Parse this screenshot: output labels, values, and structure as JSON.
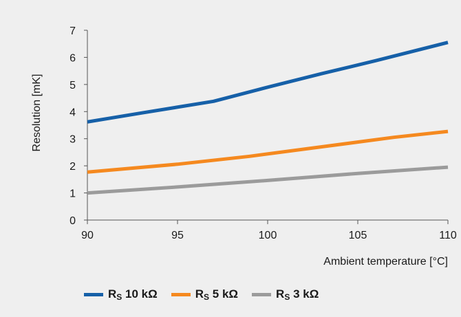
{
  "chart_data": {
    "type": "line",
    "title": "",
    "xlabel": "Ambient temperature [°C]",
    "ylabel": "Resolution [mK]",
    "xlim": [
      90,
      110
    ],
    "ylim": [
      0,
      7
    ],
    "xticks": [
      "90",
      "95",
      "100",
      "105",
      "110"
    ],
    "yticks": [
      "0",
      "1",
      "2",
      "3",
      "4",
      "5",
      "6",
      "7"
    ],
    "grid": false,
    "legend_position": "bottom",
    "series": [
      {
        "name": "Rs 10 kΩ",
        "label_main": "R",
        "label_sub": "S",
        "label_rest": " 10 kΩ",
        "color": "#1660a8",
        "x": [
          90,
          93,
          97,
          100,
          103,
          106,
          110
        ],
        "y": [
          3.62,
          3.95,
          4.38,
          4.9,
          5.4,
          5.88,
          6.55
        ]
      },
      {
        "name": "Rs 5 kΩ",
        "label_main": "R",
        "label_sub": "S",
        "label_rest": " 5 kΩ",
        "color": "#f5891f",
        "x": [
          90,
          95,
          99,
          103,
          107,
          110
        ],
        "y": [
          1.77,
          2.06,
          2.35,
          2.7,
          3.05,
          3.27
        ]
      },
      {
        "name": "Rs 3 kΩ",
        "label_main": "R",
        "label_sub": "S",
        "label_rest": " 3 kΩ",
        "color": "#9b9b9b",
        "x": [
          90,
          95,
          100,
          105,
          110
        ],
        "y": [
          1.0,
          1.22,
          1.46,
          1.72,
          1.95
        ]
      }
    ]
  }
}
